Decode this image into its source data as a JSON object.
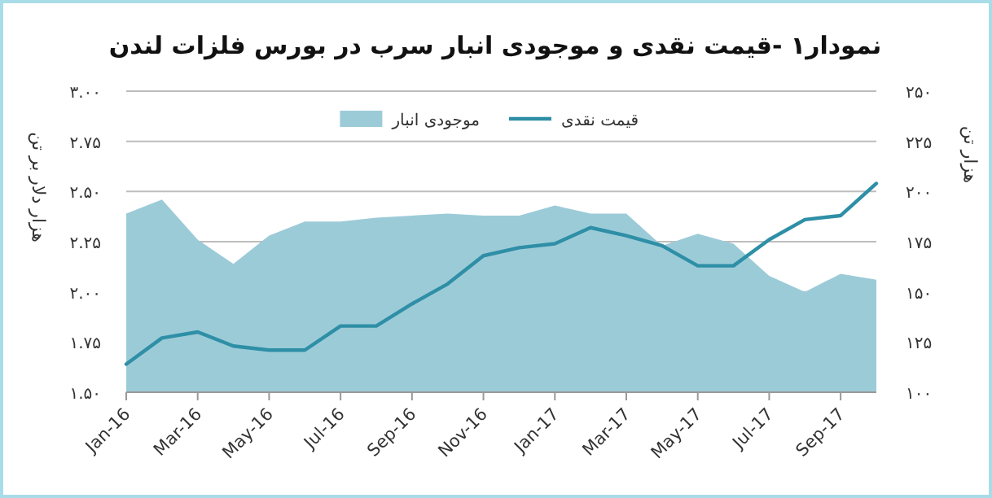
{
  "chart_data": {
    "type": "line",
    "title": "نمودار۱ -قیمت نقدی و موجودی انبار سرب در بورس فلزات لندن",
    "ylabel": "هزار دلار بر تن",
    "y2label": "هزار تن",
    "x": [
      "2016-01",
      "2016-02",
      "2016-03",
      "2016-04",
      "2016-05",
      "2016-06",
      "2016-07",
      "2016-08",
      "2016-09",
      "2016-10",
      "2016-11",
      "2016-12",
      "2017-01",
      "2017-02",
      "2017-03",
      "2017-04",
      "2017-05",
      "2017-06",
      "2017-07",
      "2017-08",
      "2017-09",
      "2017-10"
    ],
    "series": [
      {
        "name": "قیمت نقدی",
        "type": "line",
        "axis": "y",
        "color": "#2e8fa6",
        "values": [
          1.64,
          1.77,
          1.8,
          1.73,
          1.71,
          1.71,
          1.83,
          1.83,
          1.94,
          2.04,
          2.18,
          2.22,
          2.24,
          2.32,
          2.28,
          2.23,
          2.13,
          2.13,
          2.26,
          2.36,
          2.38,
          2.54
        ]
      },
      {
        "name": "موجودی انبار",
        "type": "area",
        "axis": "y2",
        "color": "#9ccbd8",
        "values": [
          189,
          196,
          176,
          164,
          178,
          185,
          185,
          187,
          188,
          189,
          188,
          188,
          193,
          189,
          189,
          173,
          179,
          174,
          158,
          150,
          159,
          156
        ]
      }
    ],
    "xlim": [
      "2016-01",
      "2017-10"
    ],
    "xticks": [
      {
        "value": "2016-01",
        "label": "Jan-16"
      },
      {
        "value": "2016-03",
        "label": "Mar-16"
      },
      {
        "value": "2016-05",
        "label": "May-16"
      },
      {
        "value": "2016-07",
        "label": "Jul-16"
      },
      {
        "value": "2016-09",
        "label": "Sep-16"
      },
      {
        "value": "2016-11",
        "label": "Nov-16"
      },
      {
        "value": "2017-01",
        "label": "Jan-17"
      },
      {
        "value": "2017-03",
        "label": "Mar-17"
      },
      {
        "value": "2017-05",
        "label": "May-17"
      },
      {
        "value": "2017-07",
        "label": "Jul-17"
      },
      {
        "value": "2017-09",
        "label": "Sep-17"
      }
    ],
    "ylim": [
      1.5,
      3.0
    ],
    "yticks": [
      {
        "value": 1.5,
        "label": "۱.۵۰"
      },
      {
        "value": 1.75,
        "label": "۱.۷۵"
      },
      {
        "value": 2.0,
        "label": "۲.۰۰"
      },
      {
        "value": 2.25,
        "label": "۲.۲۵"
      },
      {
        "value": 2.5,
        "label": "۲.۵۰"
      },
      {
        "value": 2.75,
        "label": "۲.۷۵"
      },
      {
        "value": 3.0,
        "label": "۳.۰۰"
      }
    ],
    "y2lim": [
      100,
      250
    ],
    "y2ticks": [
      {
        "value": 100,
        "label": "۱۰۰"
      },
      {
        "value": 125,
        "label": "۱۲۵"
      },
      {
        "value": 150,
        "label": "۱۵۰"
      },
      {
        "value": 175,
        "label": "۱۷۵"
      },
      {
        "value": 200,
        "label": "۲۰۰"
      },
      {
        "value": 225,
        "label": "۲۲۵"
      },
      {
        "value": 250,
        "label": "۲۵۰"
      }
    ],
    "grid": "y",
    "legend": "top",
    "marker": "none",
    "line_style": "solid"
  }
}
